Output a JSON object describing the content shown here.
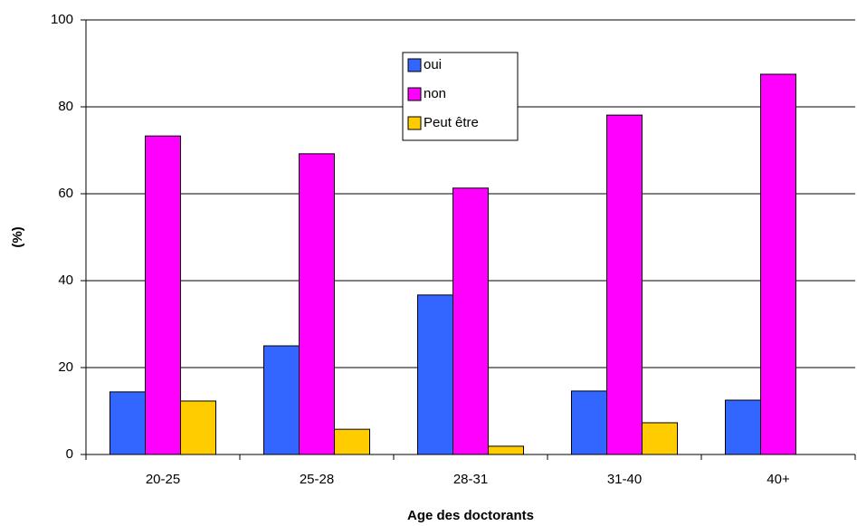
{
  "chart_data": {
    "type": "bar",
    "x_label": "Age des doctorants",
    "y_label": "(%)",
    "categories": [
      "20-25",
      "25-28",
      "28-31",
      "31-40",
      "40+"
    ],
    "series": [
      {
        "name": "oui",
        "color": "#3366ff",
        "values": [
          14.4,
          25,
          36.7,
          14.6,
          12.5
        ]
      },
      {
        "name": "non",
        "color": "#ff00ff",
        "values": [
          73.3,
          69.2,
          61.3,
          78.1,
          87.5
        ]
      },
      {
        "name": "Peut être",
        "color": "#ffcc00",
        "values": [
          12.3,
          5.8,
          1.9,
          7.3,
          0
        ]
      }
    ],
    "ylim": [
      0,
      100
    ],
    "yticks": [
      0,
      20,
      40,
      60,
      80,
      100
    ],
    "grid": true
  }
}
